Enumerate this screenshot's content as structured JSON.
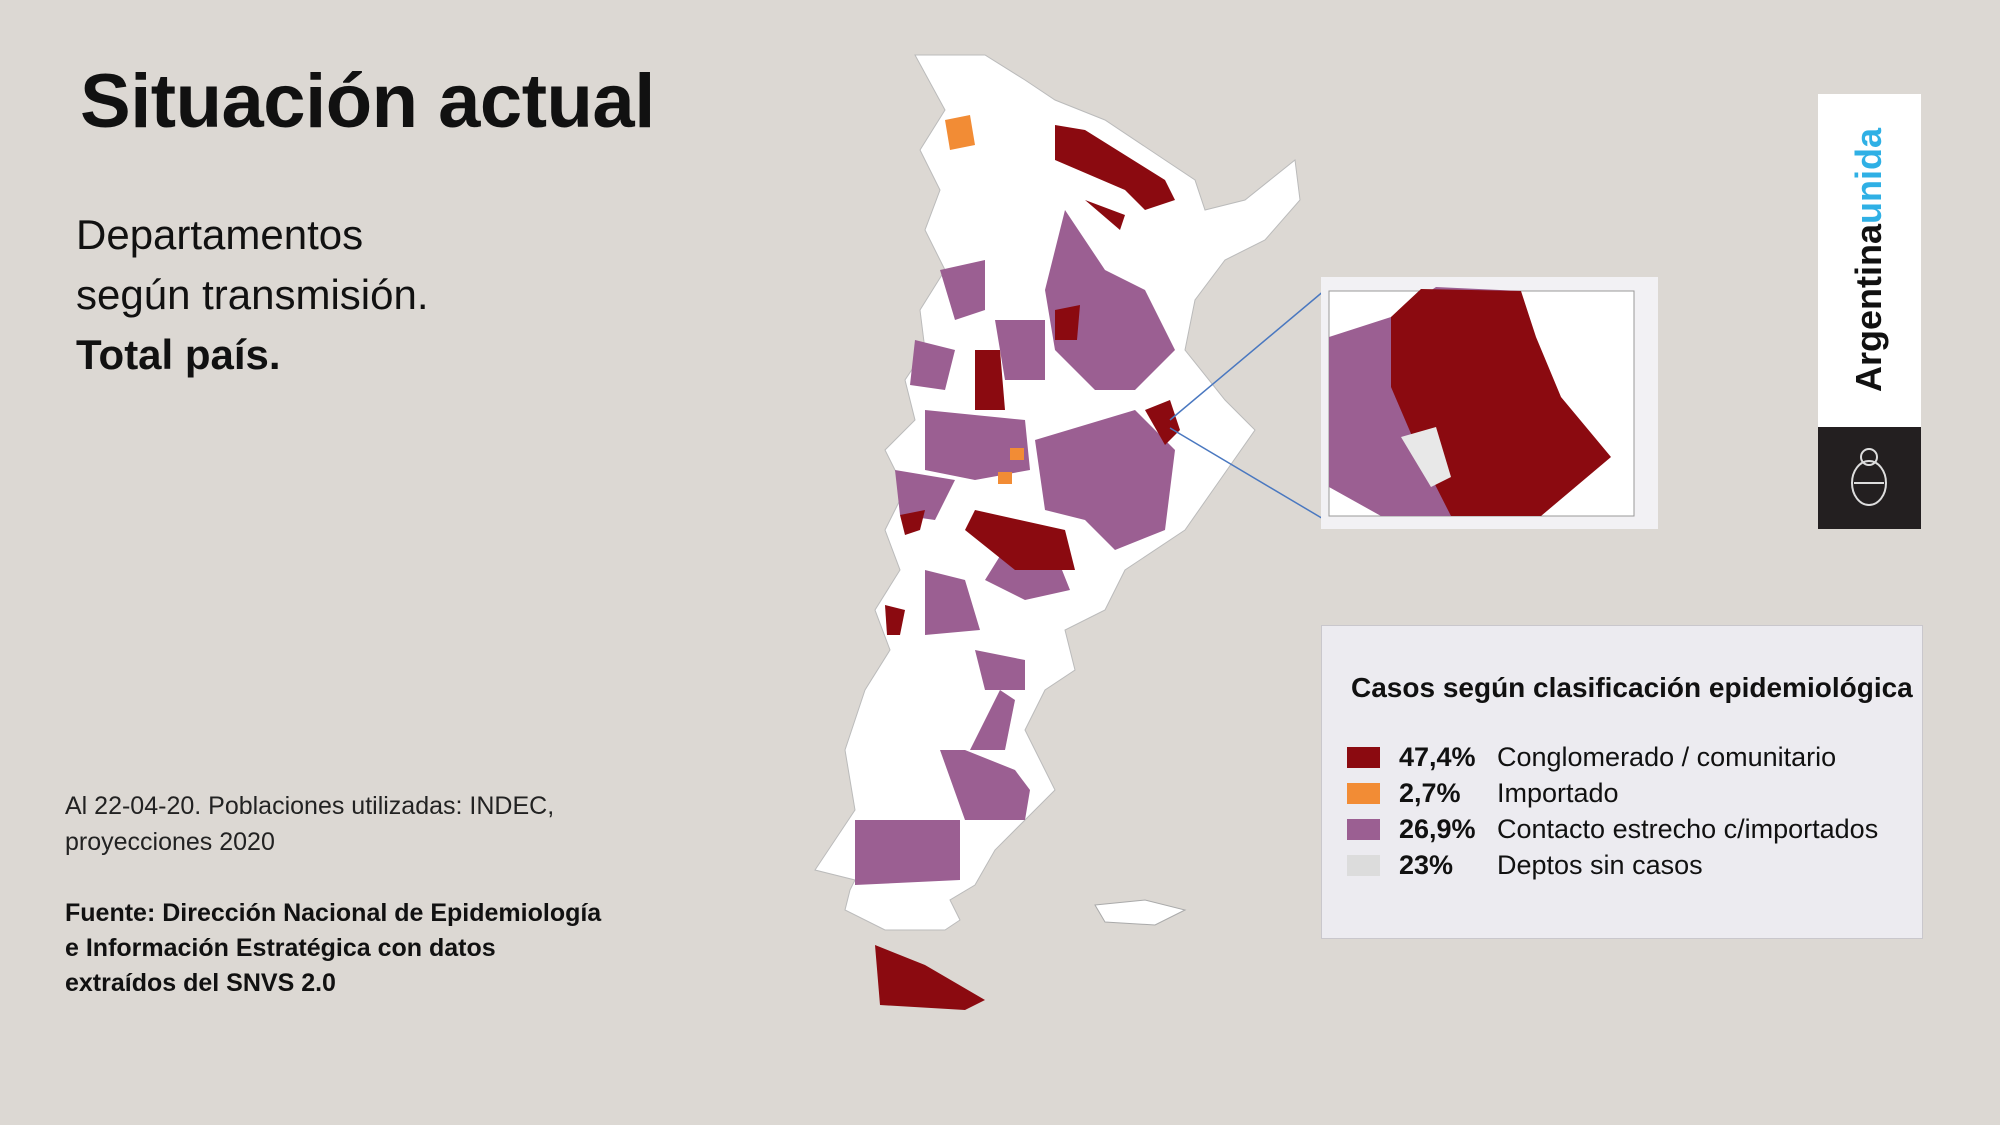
{
  "title": "Situación actual",
  "subtitle": {
    "line1": "Departamentos",
    "line2": "según transmisión.",
    "line3": "Total país."
  },
  "note": {
    "line1": "Al 22-04-20. Poblaciones utilizadas: INDEC,",
    "line2": "proyecciones 2020"
  },
  "source": {
    "line1": "Fuente: Dirección Nacional de Epidemiología",
    "line2": "e Información Estratégica con datos",
    "line3": "extraídos del SNVS 2.0"
  },
  "legend": {
    "title": "Casos según clasificación epidemiológica",
    "items": [
      {
        "pct": "47,4%",
        "label": "Conglomerado / comunitario",
        "color": "#8b0a10"
      },
      {
        "pct": "2,7%",
        "label": "Importado",
        "color": "#f28c35"
      },
      {
        "pct": "26,9%",
        "label": "Contacto estrecho c/importados",
        "color": "#9b5f92"
      },
      {
        "pct": "23%",
        "label": "Deptos sin casos",
        "color": "#dcdcdc"
      }
    ]
  },
  "logo": {
    "word1": "Argentina",
    "word2": "unida",
    "emblem": "coat-of-arms-icon"
  },
  "colors": {
    "background": "#dcd8d3",
    "community": "#8b0a10",
    "imported": "#f28c35",
    "contact": "#9b5f92",
    "no_cases": "#ffffff"
  }
}
